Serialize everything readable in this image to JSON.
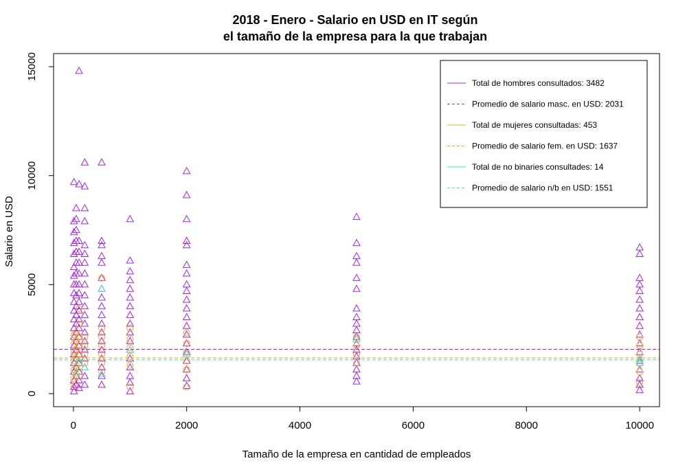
{
  "chart_data": {
    "type": "scatter",
    "title_line1": "2018 - Enero - Salario en USD en IT según",
    "title_line2": "el tamaño de la empresa para la que trabajan",
    "xlabel": "Tamaño de la empresa en cantidad de empleados",
    "ylabel": "Salario en USD",
    "xlim": [
      -350,
      10350
    ],
    "ylim": [
      -600,
      15600
    ],
    "x_ticks": [
      0,
      2000,
      4000,
      6000,
      8000,
      10000
    ],
    "y_ticks": [
      0,
      5000,
      10000,
      15000
    ],
    "x_tick_labels": [
      "0",
      "2000",
      "4000",
      "6000",
      "8000",
      "10000"
    ],
    "y_tick_labels": [
      "0",
      "5000",
      "10000",
      "15000"
    ],
    "legend_position": "top-right",
    "series": [
      {
        "name": "hombres",
        "color": "#a020f0",
        "marker": "triangle",
        "points": [
          [
            10,
            9700
          ],
          [
            10,
            7900
          ],
          [
            10,
            7400
          ],
          [
            10,
            6900
          ],
          [
            10,
            6400
          ],
          [
            10,
            5800
          ],
          [
            10,
            5400
          ],
          [
            10,
            5000
          ],
          [
            10,
            4600
          ],
          [
            10,
            4200
          ],
          [
            10,
            3800
          ],
          [
            10,
            3400
          ],
          [
            10,
            3000
          ],
          [
            10,
            2600
          ],
          [
            10,
            2200
          ],
          [
            10,
            1800
          ],
          [
            10,
            1400
          ],
          [
            10,
            1000
          ],
          [
            10,
            600
          ],
          [
            10,
            300
          ],
          [
            10,
            100
          ],
          [
            50,
            8500
          ],
          [
            50,
            8000
          ],
          [
            50,
            7500
          ],
          [
            50,
            7000
          ],
          [
            50,
            6500
          ],
          [
            50,
            6000
          ],
          [
            50,
            5500
          ],
          [
            50,
            5000
          ],
          [
            50,
            4500
          ],
          [
            50,
            4000
          ],
          [
            50,
            3600
          ],
          [
            50,
            3200
          ],
          [
            50,
            2800
          ],
          [
            50,
            2400
          ],
          [
            50,
            2000
          ],
          [
            50,
            1600
          ],
          [
            50,
            1200
          ],
          [
            50,
            800
          ],
          [
            50,
            400
          ],
          [
            100,
            14800
          ],
          [
            100,
            9600
          ],
          [
            100,
            7000
          ],
          [
            100,
            6500
          ],
          [
            100,
            6000
          ],
          [
            100,
            5500
          ],
          [
            100,
            5000
          ],
          [
            100,
            4600
          ],
          [
            100,
            4200
          ],
          [
            100,
            3800
          ],
          [
            100,
            3400
          ],
          [
            100,
            3000
          ],
          [
            100,
            2600
          ],
          [
            100,
            2200
          ],
          [
            100,
            1800
          ],
          [
            100,
            1400
          ],
          [
            100,
            1000
          ],
          [
            100,
            600
          ],
          [
            100,
            250
          ],
          [
            200,
            10600
          ],
          [
            200,
            9500
          ],
          [
            200,
            8500
          ],
          [
            200,
            7900
          ],
          [
            200,
            6800
          ],
          [
            200,
            6400
          ],
          [
            200,
            6000
          ],
          [
            200,
            5500
          ],
          [
            200,
            5000
          ],
          [
            200,
            4500
          ],
          [
            200,
            4000
          ],
          [
            200,
            3600
          ],
          [
            200,
            3200
          ],
          [
            200,
            2800
          ],
          [
            200,
            2400
          ],
          [
            200,
            2000
          ],
          [
            200,
            1600
          ],
          [
            200,
            1200
          ],
          [
            200,
            800
          ],
          [
            200,
            400
          ],
          [
            500,
            10600
          ],
          [
            500,
            7000
          ],
          [
            500,
            6800
          ],
          [
            500,
            6300
          ],
          [
            500,
            6000
          ],
          [
            500,
            5300
          ],
          [
            500,
            4800
          ],
          [
            500,
            4400
          ],
          [
            500,
            4000
          ],
          [
            500,
            3600
          ],
          [
            500,
            3200
          ],
          [
            500,
            2800
          ],
          [
            500,
            2400
          ],
          [
            500,
            2000
          ],
          [
            500,
            1600
          ],
          [
            500,
            1200
          ],
          [
            500,
            800
          ],
          [
            500,
            400
          ],
          [
            1000,
            8000
          ],
          [
            1000,
            6100
          ],
          [
            1000,
            5600
          ],
          [
            1000,
            5200
          ],
          [
            1000,
            4800
          ],
          [
            1000,
            4400
          ],
          [
            1000,
            4000
          ],
          [
            1000,
            3600
          ],
          [
            1000,
            3200
          ],
          [
            1000,
            2800
          ],
          [
            1000,
            2400
          ],
          [
            1000,
            2000
          ],
          [
            1000,
            1600
          ],
          [
            1000,
            1200
          ],
          [
            1000,
            800
          ],
          [
            1000,
            500
          ],
          [
            1000,
            100
          ],
          [
            2000,
            10200
          ],
          [
            2000,
            9100
          ],
          [
            2000,
            8000
          ],
          [
            2000,
            7000
          ],
          [
            2000,
            6800
          ],
          [
            2000,
            5900
          ],
          [
            2000,
            5500
          ],
          [
            2000,
            5000
          ],
          [
            2000,
            4700
          ],
          [
            2000,
            4300
          ],
          [
            2000,
            3900
          ],
          [
            2000,
            3500
          ],
          [
            2000,
            3100
          ],
          [
            2000,
            2700
          ],
          [
            2000,
            2300
          ],
          [
            2000,
            1900
          ],
          [
            2000,
            1500
          ],
          [
            2000,
            1100
          ],
          [
            2000,
            700
          ],
          [
            2000,
            350
          ],
          [
            5000,
            8100
          ],
          [
            5000,
            6900
          ],
          [
            5000,
            6300
          ],
          [
            5000,
            6000
          ],
          [
            5000,
            5300
          ],
          [
            5000,
            4800
          ],
          [
            5000,
            3900
          ],
          [
            5000,
            3500
          ],
          [
            5000,
            3200
          ],
          [
            5000,
            2900
          ],
          [
            5000,
            2600
          ],
          [
            5000,
            2300
          ],
          [
            5000,
            2000
          ],
          [
            5000,
            1700
          ],
          [
            5000,
            1400
          ],
          [
            5000,
            1100
          ],
          [
            5000,
            800
          ],
          [
            5000,
            550
          ],
          [
            10000,
            6700
          ],
          [
            10000,
            6400
          ],
          [
            10000,
            5300
          ],
          [
            10000,
            5000
          ],
          [
            10000,
            4700
          ],
          [
            10000,
            4300
          ],
          [
            10000,
            3900
          ],
          [
            10000,
            3500
          ],
          [
            10000,
            3100
          ],
          [
            10000,
            2700
          ],
          [
            10000,
            2300
          ],
          [
            10000,
            1900
          ],
          [
            10000,
            1500
          ],
          [
            10000,
            1100
          ],
          [
            10000,
            700
          ],
          [
            10000,
            400
          ],
          [
            10000,
            150
          ]
        ]
      },
      {
        "name": "mujeres",
        "color": "#ffa500",
        "marker": "circle",
        "points": [
          [
            10,
            2700
          ],
          [
            10,
            2300
          ],
          [
            10,
            1900
          ],
          [
            10,
            1500
          ],
          [
            10,
            1100
          ],
          [
            10,
            700
          ],
          [
            10,
            350
          ],
          [
            50,
            2800
          ],
          [
            50,
            2400
          ],
          [
            50,
            2000
          ],
          [
            50,
            1600
          ],
          [
            50,
            1200
          ],
          [
            50,
            800
          ],
          [
            100,
            3900
          ],
          [
            100,
            3200
          ],
          [
            100,
            2600
          ],
          [
            100,
            2200
          ],
          [
            100,
            1800
          ],
          [
            100,
            1400
          ],
          [
            100,
            1000
          ],
          [
            200,
            2600
          ],
          [
            200,
            2200
          ],
          [
            200,
            1800
          ],
          [
            200,
            1400
          ],
          [
            500,
            5300
          ],
          [
            500,
            3000
          ],
          [
            500,
            2600
          ],
          [
            500,
            2200
          ],
          [
            500,
            1800
          ],
          [
            500,
            1400
          ],
          [
            500,
            1000
          ],
          [
            1000,
            3000
          ],
          [
            1000,
            2500
          ],
          [
            1000,
            2100
          ],
          [
            1000,
            1700
          ],
          [
            1000,
            1300
          ],
          [
            1000,
            300
          ],
          [
            2000,
            2800
          ],
          [
            2000,
            2300
          ],
          [
            2000,
            1900
          ],
          [
            2000,
            1500
          ],
          [
            2000,
            1100
          ],
          [
            2000,
            300
          ],
          [
            5000,
            2600
          ],
          [
            5000,
            2200
          ],
          [
            5000,
            1800
          ],
          [
            5000,
            1400
          ],
          [
            10000,
            2600
          ],
          [
            10000,
            2200
          ],
          [
            10000,
            1800
          ],
          [
            10000,
            1400
          ],
          [
            10000,
            1000
          ],
          [
            10000,
            500
          ]
        ]
      },
      {
        "name": "no binaries",
        "color": "#40e0d0",
        "marker": "triangle",
        "points": [
          [
            50,
            1000
          ],
          [
            100,
            1500
          ],
          [
            200,
            1200
          ],
          [
            500,
            4800
          ],
          [
            500,
            900
          ],
          [
            1000,
            2000
          ],
          [
            2000,
            1800
          ],
          [
            5000,
            2500
          ],
          [
            10000,
            1400
          ],
          [
            10000,
            1600
          ]
        ]
      }
    ],
    "hlines": [
      {
        "name": "Promedio masc.",
        "y": 2031,
        "color": "#a020f0"
      },
      {
        "name": "Promedio fem.",
        "y": 1637,
        "color": "#ffa500"
      },
      {
        "name": "Promedio n/b",
        "y": 1551,
        "color": "#40e0d0"
      }
    ],
    "legend": [
      {
        "label": "Total de hombres consultados:  3482",
        "color": "#a020f0",
        "dashed": false
      },
      {
        "label": "Promedio de salario masc. en USD:  2031",
        "color": "#a020f0",
        "dashed": true
      },
      {
        "label": "Total de mujeres consultadas:  453",
        "color": "#ffa500",
        "dashed": false
      },
      {
        "label": "Promedio de salario fem. en USD:  1637",
        "color": "#ffa500",
        "dashed": true
      },
      {
        "label": "Total de no binaries consultades:  14",
        "color": "#40e0d0",
        "dashed": false
      },
      {
        "label": "Promedio de salario n/b en USD:  1551",
        "color": "#40e0d0",
        "dashed": true
      }
    ]
  }
}
